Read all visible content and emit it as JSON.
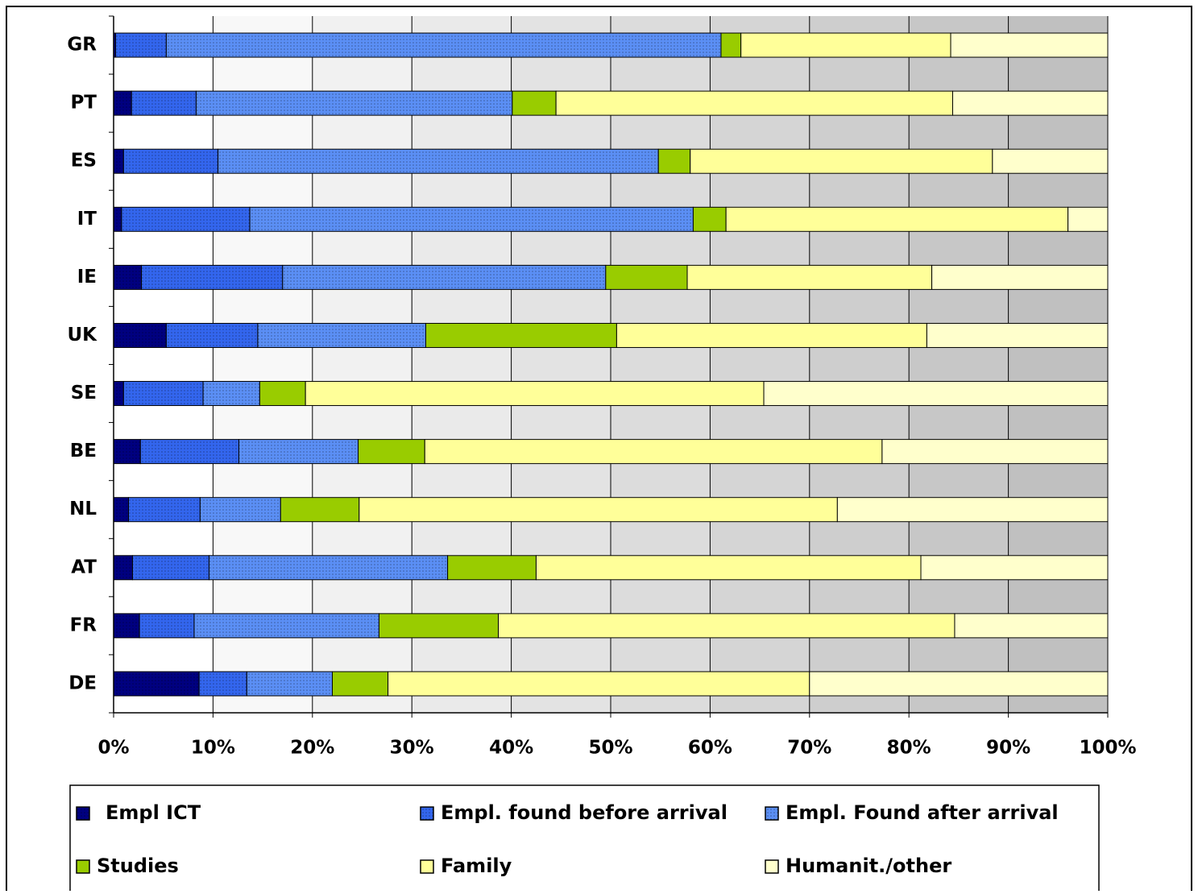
{
  "chart_data": {
    "type": "stacked-bar-horizontal",
    "categories": [
      "GR",
      "PT",
      "ES",
      "IT",
      "IE",
      "UK",
      "SE",
      "BE",
      "NL",
      "AT",
      "FR",
      "DE"
    ],
    "series": [
      {
        "name": "Empl ICT",
        "color": "#000080",
        "values": [
          0.2,
          1.8,
          1.0,
          0.8,
          2.8,
          5.3,
          1.0,
          2.7,
          1.5,
          1.9,
          2.6,
          8.6
        ]
      },
      {
        "name": "Empl. found before arrival",
        "color": "#3366ee",
        "values": [
          5.1,
          6.5,
          9.5,
          12.9,
          14.2,
          9.2,
          8.0,
          9.9,
          7.2,
          7.7,
          5.5,
          4.8
        ]
      },
      {
        "name": "Empl. Found after arrival",
        "color": "#5b8ff5",
        "values": [
          55.8,
          31.8,
          44.3,
          44.6,
          32.5,
          16.9,
          5.7,
          12.0,
          8.1,
          24.0,
          18.6,
          8.6
        ]
      },
      {
        "name": "Studies",
        "color": "#99cc00",
        "values": [
          2.0,
          4.4,
          3.2,
          3.3,
          8.2,
          19.2,
          4.6,
          6.7,
          7.9,
          8.9,
          12.0,
          5.6
        ]
      },
      {
        "name": "Family",
        "color": "#ffff99",
        "values": [
          21.1,
          39.9,
          30.4,
          34.4,
          24.6,
          31.2,
          46.1,
          46.0,
          48.1,
          38.7,
          45.9,
          42.4
        ]
      },
      {
        "name": "Humanit./other",
        "color": "#ffffcc",
        "values": [
          15.8,
          15.6,
          11.6,
          4.0,
          17.7,
          18.2,
          34.6,
          22.7,
          27.2,
          18.8,
          15.4,
          30.0
        ]
      }
    ],
    "xlim": [
      0,
      100
    ],
    "xticks": [
      {
        "value": 0,
        "label": "0%"
      },
      {
        "value": 10,
        "label": "10%"
      },
      {
        "value": 20,
        "label": "20%"
      },
      {
        "value": 30,
        "label": "30%"
      },
      {
        "value": 40,
        "label": "40%"
      },
      {
        "value": 50,
        "label": "50%"
      },
      {
        "value": 60,
        "label": "60%"
      },
      {
        "value": 70,
        "label": "70%"
      },
      {
        "value": 80,
        "label": "80%"
      },
      {
        "value": 90,
        "label": "90%"
      },
      {
        "value": 100,
        "label": "100%"
      }
    ],
    "grid": true
  }
}
